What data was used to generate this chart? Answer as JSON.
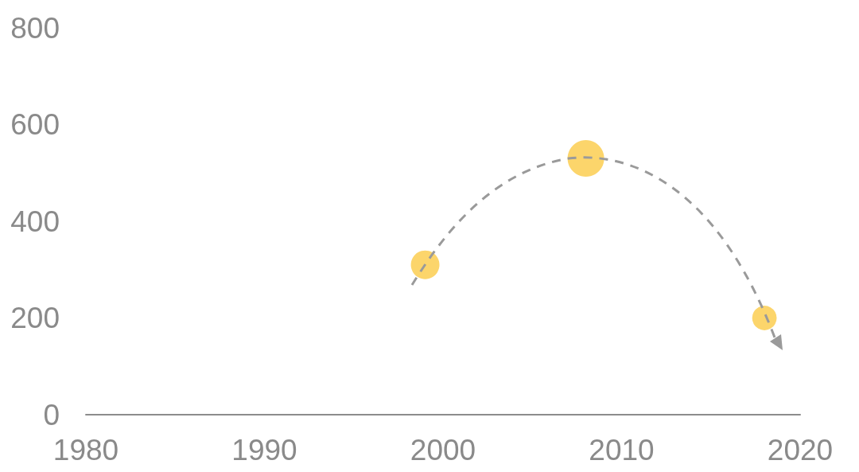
{
  "chart_data": {
    "type": "bubble",
    "x": [
      1999,
      2008,
      2018
    ],
    "values": [
      310,
      530,
      200
    ],
    "sizes": [
      0.61,
      1,
      0.45
    ],
    "color": "#fcd56b",
    "xlim": [
      1980,
      2020
    ],
    "xticks": [
      1980,
      1990,
      2000,
      2010,
      2020
    ],
    "ylim": [
      0,
      800
    ],
    "yticks": [
      0,
      200,
      400,
      600,
      800
    ]
  }
}
